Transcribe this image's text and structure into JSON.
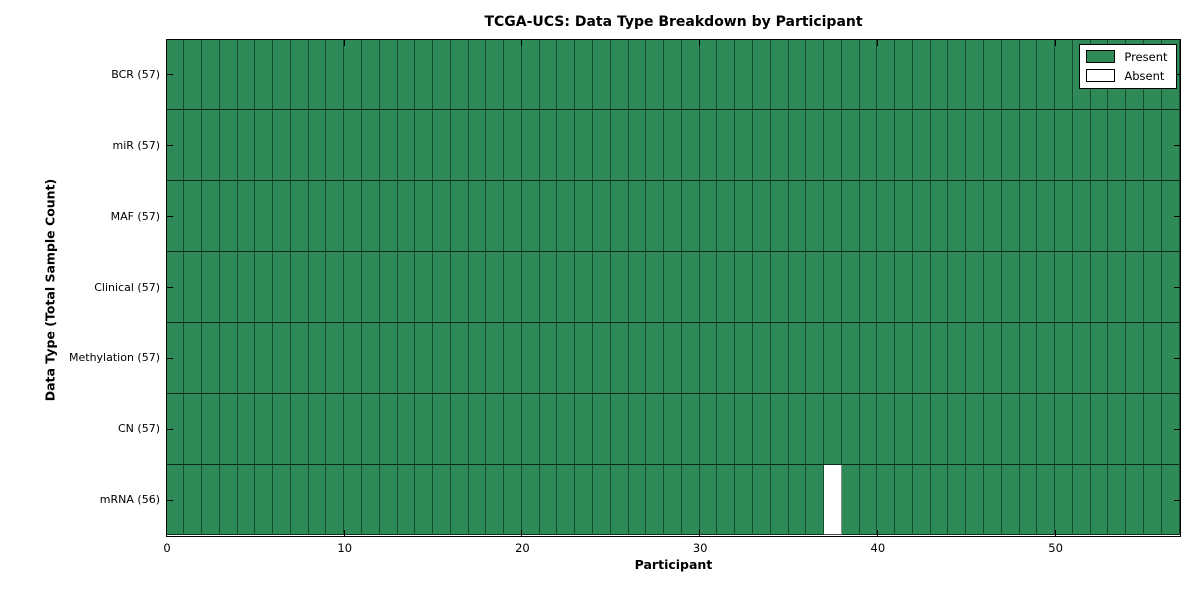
{
  "figure": {
    "title": "TCGA-UCS: Data Type Breakdown by Participant",
    "xlabel": "Participant",
    "ylabel": "Data Type (Total Sample Count)"
  },
  "legend": {
    "position": "upper-right",
    "items": [
      {
        "label": "Present",
        "swatch": "present"
      },
      {
        "label": "Absent",
        "swatch": "absent"
      }
    ]
  },
  "colors": {
    "present": "#2e8b57",
    "absent": "#ffffff",
    "spine": "#000000",
    "background": "#ffffff"
  },
  "chart_data": {
    "type": "heatmap",
    "title": "TCGA-UCS: Data Type Breakdown by Participant",
    "xlabel": "Participant",
    "ylabel": "Data Type (Total Sample Count)",
    "x_range": [
      0,
      57
    ],
    "x_ticks": [
      0,
      10,
      20,
      30,
      40,
      50
    ],
    "n_participants": 57,
    "legend_entries": [
      "Present",
      "Absent"
    ],
    "legend_position": "upper right",
    "grid": "cell borders visible",
    "rows": [
      {
        "label": "BCR (57)",
        "data_type": "BCR",
        "total_samples": 57,
        "absent_participant_indices": []
      },
      {
        "label": "miR (57)",
        "data_type": "miR",
        "total_samples": 57,
        "absent_participant_indices": []
      },
      {
        "label": "MAF (57)",
        "data_type": "MAF",
        "total_samples": 57,
        "absent_participant_indices": []
      },
      {
        "label": "Clinical (57)",
        "data_type": "Clinical",
        "total_samples": 57,
        "absent_participant_indices": []
      },
      {
        "label": "Methylation (57)",
        "data_type": "Methylation",
        "total_samples": 57,
        "absent_participant_indices": []
      },
      {
        "label": "CN (57)",
        "data_type": "CN",
        "total_samples": 57,
        "absent_participant_indices": []
      },
      {
        "label": "mRNA (56)",
        "data_type": "mRNA",
        "total_samples": 56,
        "absent_participant_indices": [
          37
        ]
      }
    ]
  }
}
